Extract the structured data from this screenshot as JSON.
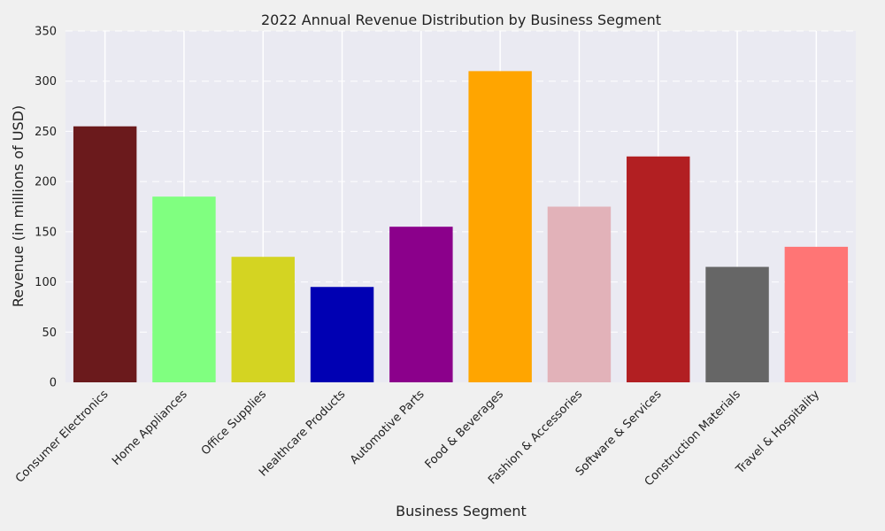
{
  "chart_data": {
    "type": "bar",
    "title": "2022 Annual Revenue Distribution by Business Segment",
    "xlabel": "Business Segment",
    "ylabel": "Revenue (in millions of USD)",
    "ylim": [
      0,
      350
    ],
    "yticks": [
      0,
      50,
      100,
      150,
      200,
      250,
      300,
      350
    ],
    "grid": true,
    "categories": [
      "Consumer Electronics",
      "Home Appliances",
      "Office Supplies",
      "Healthcare Products",
      "Automotive Parts",
      "Food & Beverages",
      "Fashion & Accessories",
      "Software & Services",
      "Construction Materials",
      "Travel & Hospitality"
    ],
    "values": [
      255,
      185,
      125,
      95,
      155,
      310,
      175,
      225,
      115,
      135
    ],
    "colors": [
      "#6b1a1c",
      "#80ff80",
      "#d4d422",
      "#0000b3",
      "#8b008b",
      "#ffa500",
      "#e2b2b9",
      "#b21f22",
      "#666666",
      "#ff7575"
    ]
  }
}
